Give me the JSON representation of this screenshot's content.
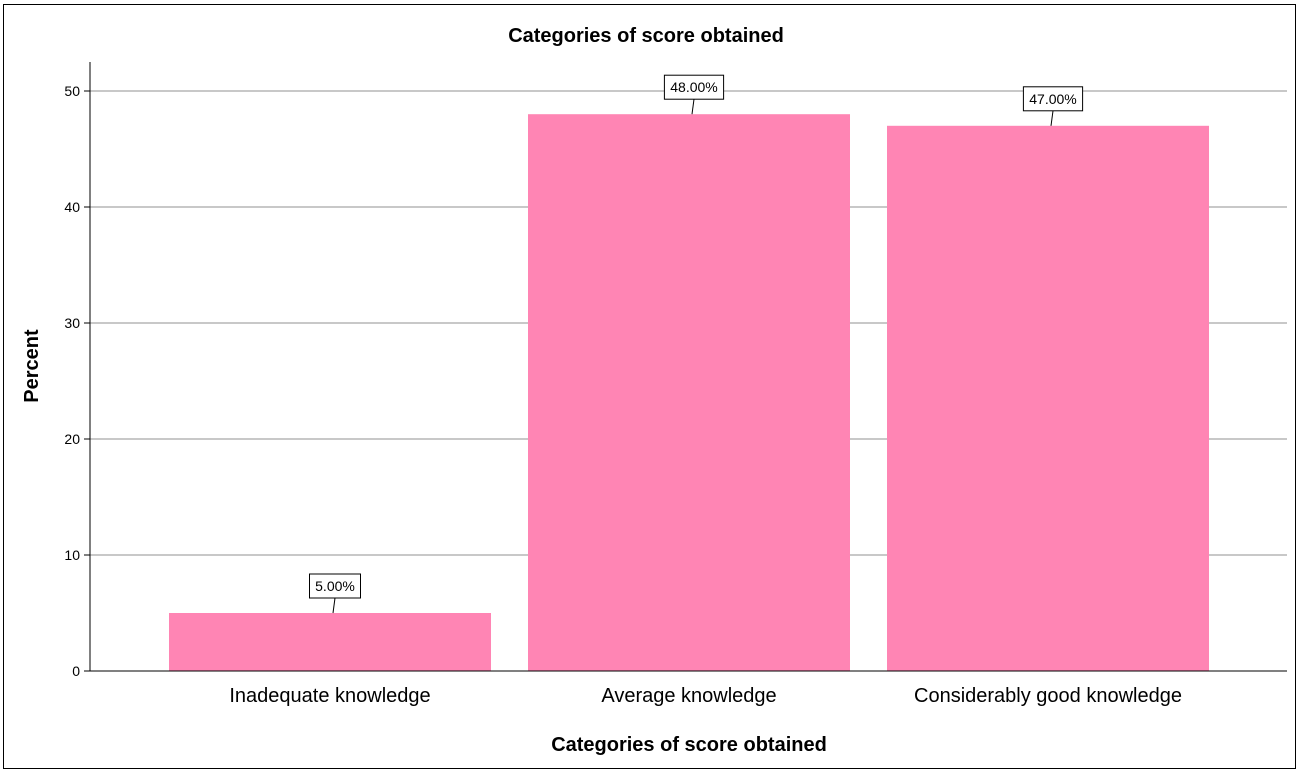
{
  "chart_data": {
    "type": "bar",
    "title": "Categories of score obtained",
    "xlabel": "Categories of score obtained",
    "ylabel": "Percent",
    "categories": [
      "Inadequate knowledge",
      "Average knowledge",
      "Considerably good knowledge"
    ],
    "values": [
      5,
      48,
      47
    ],
    "data_labels": [
      "5.00%",
      "48.00%",
      "47.00%"
    ],
    "ylim": [
      0,
      52.5
    ],
    "yticks": [
      0,
      10,
      20,
      30,
      40,
      50
    ],
    "grid": true,
    "legend": "none",
    "bar_color": "#FF85B4"
  }
}
